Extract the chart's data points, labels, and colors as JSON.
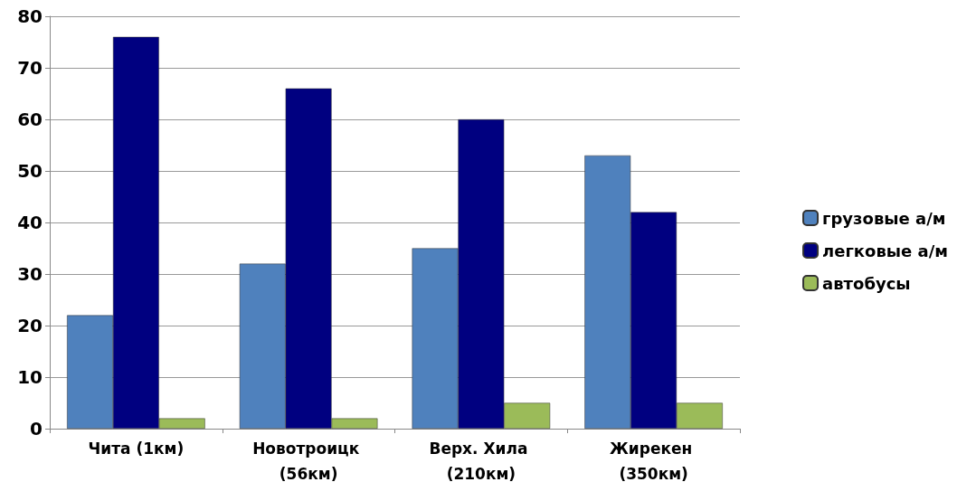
{
  "chart_data": {
    "type": "bar",
    "categories": [
      "Чита (1км)",
      "Новотроицк (56км)",
      "Верх. Хила (210км)",
      "Жирекен (350км)"
    ],
    "series": [
      {
        "name": "грузовые а/м",
        "color": "#4f81bd",
        "values": [
          22,
          32,
          35,
          53
        ]
      },
      {
        "name": "легковые а/м",
        "color": "#000080",
        "values": [
          76,
          66,
          60,
          42
        ]
      },
      {
        "name": "автобусы",
        "color": "#9bbb59",
        "values": [
          2,
          2,
          5,
          5
        ]
      }
    ],
    "ylim": [
      0,
      80
    ],
    "yticks": [
      0,
      10,
      20,
      30,
      40,
      50,
      60,
      70,
      80
    ],
    "grid": "y",
    "legend": "right"
  }
}
